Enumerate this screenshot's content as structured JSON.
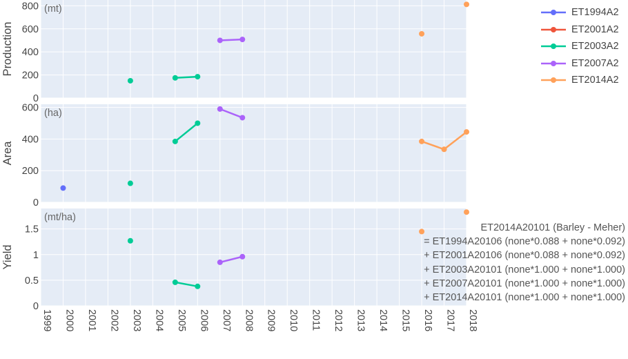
{
  "chart_data": {
    "type": "line",
    "x_ticks": [
      "1999",
      "2000",
      "2001",
      "2002",
      "2003",
      "2004",
      "2005",
      "2006",
      "2007",
      "2008",
      "2009",
      "2010",
      "2011",
      "2012",
      "2013",
      "2014",
      "2015",
      "2016",
      "2017",
      "2018"
    ],
    "xlim": [
      1999,
      2018
    ],
    "panels": [
      {
        "ylabel": "Production",
        "unit": "(mt)",
        "ylim": [
          0,
          850
        ],
        "yticks": [
          0,
          200,
          400,
          600,
          800
        ],
        "series": [
          {
            "name": "ET1994A2",
            "x": [],
            "y": []
          },
          {
            "name": "ET2001A2",
            "x": [],
            "y": []
          },
          {
            "name": "ET2003A2",
            "x": [
              2003,
              2005,
              2006
            ],
            "y": [
              150,
              175,
              185
            ]
          },
          {
            "name": "ET2007A2",
            "x": [
              2007,
              2008
            ],
            "y": [
              500,
              508
            ]
          },
          {
            "name": "ET2014A2",
            "x": [
              2016,
              2018
            ],
            "y": [
              557,
              812
            ]
          }
        ]
      },
      {
        "ylabel": "Area",
        "unit": "(ha)",
        "ylim": [
          0,
          620
        ],
        "yticks": [
          0,
          200,
          400,
          600
        ],
        "series": [
          {
            "name": "ET1994A2",
            "x": [
              2000
            ],
            "y": [
              90
            ]
          },
          {
            "name": "ET2001A2",
            "x": [],
            "y": []
          },
          {
            "name": "ET2003A2",
            "x": [
              2003,
              2005,
              2006
            ],
            "y": [
              120,
              385,
              500
            ]
          },
          {
            "name": "ET2007A2",
            "x": [
              2007,
              2008
            ],
            "y": [
              590,
              535
            ]
          },
          {
            "name": "ET2014A2",
            "x": [
              2016,
              2017,
              2018
            ],
            "y": [
              385,
              335,
              445
            ]
          }
        ]
      },
      {
        "ylabel": "Yield",
        "unit": "(mt/ha)",
        "ylim": [
          0,
          1.9
        ],
        "yticks": [
          0,
          0.5,
          1,
          1.5
        ],
        "series": [
          {
            "name": "ET1994A2",
            "x": [],
            "y": []
          },
          {
            "name": "ET2001A2",
            "x": [],
            "y": []
          },
          {
            "name": "ET2003A2",
            "x": [
              2003,
              2005,
              2006
            ],
            "y": [
              1.27,
              0.46,
              0.38
            ]
          },
          {
            "name": "ET2007A2",
            "x": [
              2007,
              2008
            ],
            "y": [
              0.85,
              0.96
            ]
          },
          {
            "name": "ET2014A2",
            "x": [
              2016,
              2018
            ],
            "y": [
              1.45,
              1.83
            ]
          }
        ]
      }
    ],
    "legend": [
      {
        "name": "ET1994A2",
        "color": "#636efa"
      },
      {
        "name": "ET2001A2",
        "color": "#ef553b"
      },
      {
        "name": "ET2003A2",
        "color": "#00cc96"
      },
      {
        "name": "ET2007A2",
        "color": "#ab63fa"
      },
      {
        "name": "ET2014A2",
        "color": "#ffa15a"
      }
    ],
    "legend_position": "top-right",
    "grid": true,
    "annotation": [
      "ET2014A20101 (Barley - Meher)",
      "= ET1994A20106 (none*0.088 + none*0.092)",
      "+ ET2001A20106 (none*0.088 + none*0.092)",
      "+ ET2003A20101 (none*1.000 + none*1.000)",
      "+ ET2007A20101 (none*1.000 + none*1.000)",
      "+ ET2014A20101 (none*1.000 + none*1.000)"
    ]
  },
  "colors": {
    "plot_bg": "#e5ecf6",
    "grid": "#ffffff"
  }
}
